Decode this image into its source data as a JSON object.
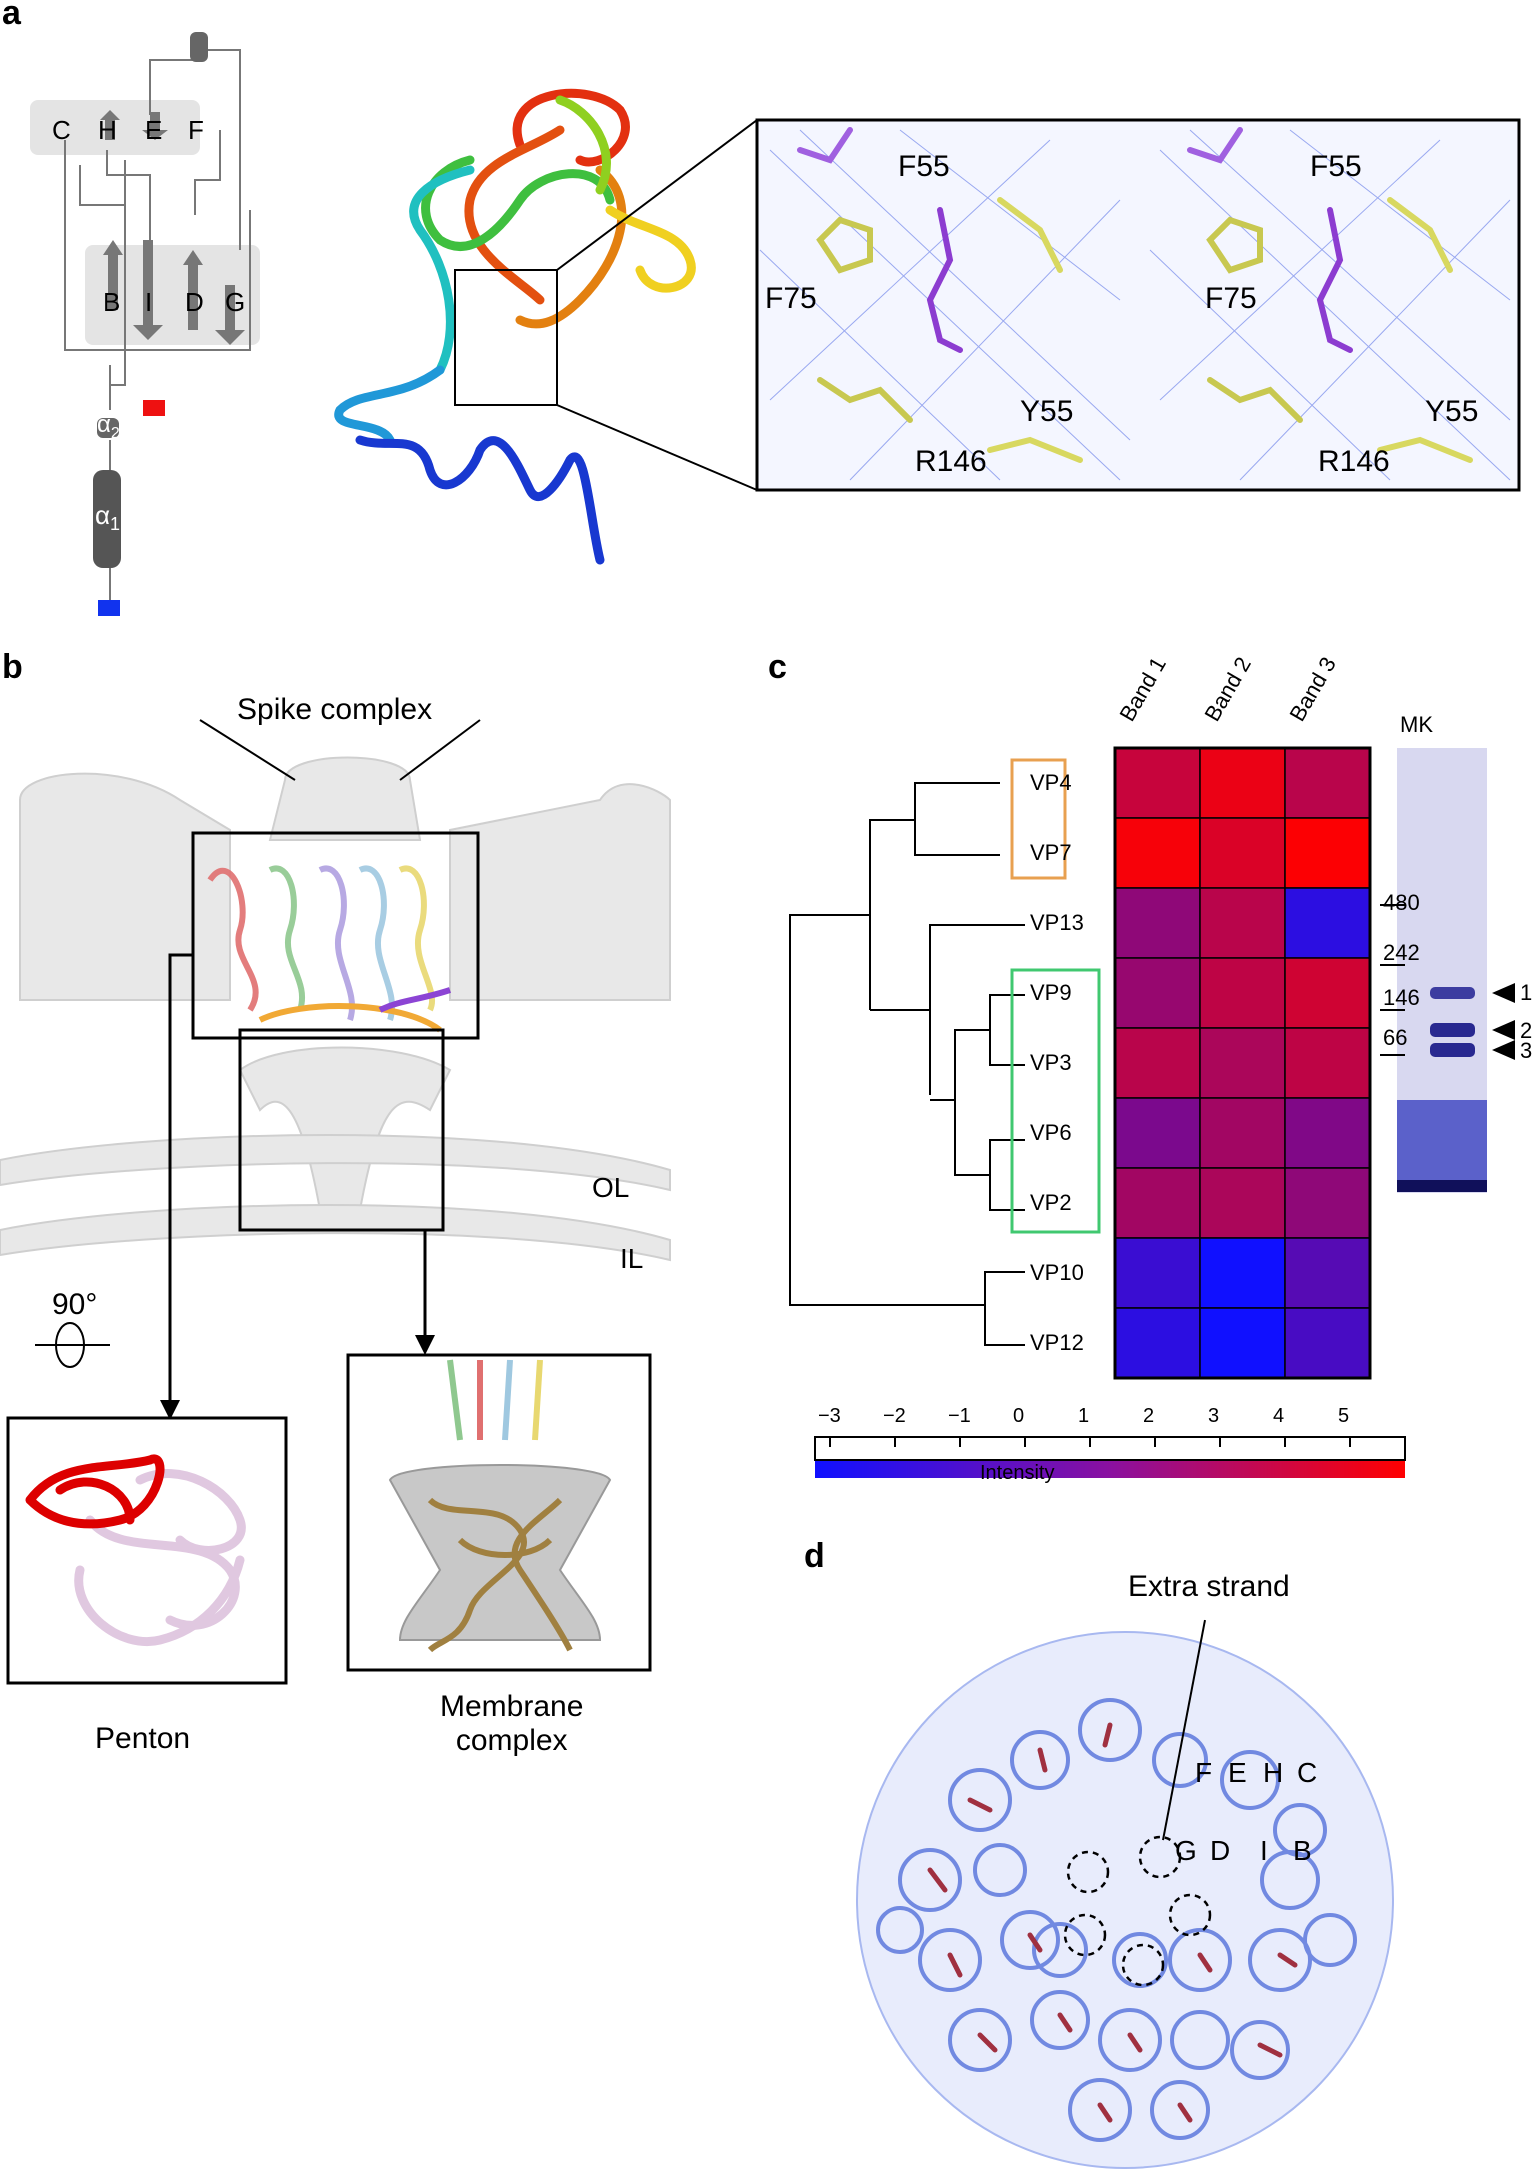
{
  "panels": {
    "a": "a",
    "b": "b",
    "c": "c",
    "d": "d"
  },
  "topology": {
    "strands": [
      "C",
      "H",
      "E",
      "F",
      "B",
      "I",
      "D",
      "G"
    ],
    "helix1": "α",
    "helix1_sub": "1",
    "helix2": "α",
    "helix2_sub": "2"
  },
  "density_labels": [
    "F55",
    "F75",
    "Y55",
    "R146"
  ],
  "panel_b": {
    "spike": "Spike complex",
    "ol": "OL",
    "il": "IL",
    "rotation": "90°",
    "penton": "Penton",
    "membrane_line1": "Membrane",
    "membrane_line2": "complex"
  },
  "panel_c": {
    "columns": [
      "Band 1",
      "Band 2",
      "Band 3"
    ],
    "rows": [
      "VP4",
      "VP7",
      "VP13",
      "VP9",
      "VP3",
      "VP6",
      "VP2",
      "VP10",
      "VP12"
    ],
    "gel_title": "MK",
    "markers": [
      "480",
      "242",
      "146",
      "66"
    ],
    "band_arrows": [
      "1",
      "2",
      "3"
    ],
    "scale_ticks": [
      "−3",
      "−2",
      "−1",
      "0",
      "1",
      "2",
      "3",
      "4",
      "5"
    ],
    "scale_label": "Intensity",
    "colors": {
      "low": "#1010ff",
      "high": "#ff0000",
      "orange_box": "#e8a050",
      "green_box": "#40c870"
    }
  },
  "chart_data": {
    "type": "heatmap",
    "title": "",
    "columns": [
      "Band 1",
      "Band 2",
      "Band 3"
    ],
    "rows": [
      "VP4",
      "VP7",
      "VP13",
      "VP9",
      "VP3",
      "VP6",
      "VP2",
      "VP10",
      "VP12"
    ],
    "values": [
      [
        3.5,
        4.8,
        3.0
      ],
      [
        5.2,
        4.2,
        5.4
      ],
      [
        1.5,
        3.0,
        -2.0
      ],
      [
        1.8,
        3.2,
        3.8
      ],
      [
        3.0,
        2.5,
        3.2
      ],
      [
        0.8,
        2.2,
        1.0
      ],
      [
        2.2,
        2.5,
        1.5
      ],
      [
        -1.5,
        -3.0,
        -0.5
      ],
      [
        -2.0,
        -3.0,
        -1.0
      ]
    ],
    "colorscale": {
      "min": -3,
      "max": 5.5,
      "low": "#1010ff",
      "high": "#ff0000"
    },
    "legend_label": "Intensity"
  },
  "panel_d": {
    "extra": "Extra strand",
    "row1": [
      "F",
      "E",
      "H",
      "C"
    ],
    "row2": [
      "G",
      "D",
      "I",
      "B"
    ]
  }
}
